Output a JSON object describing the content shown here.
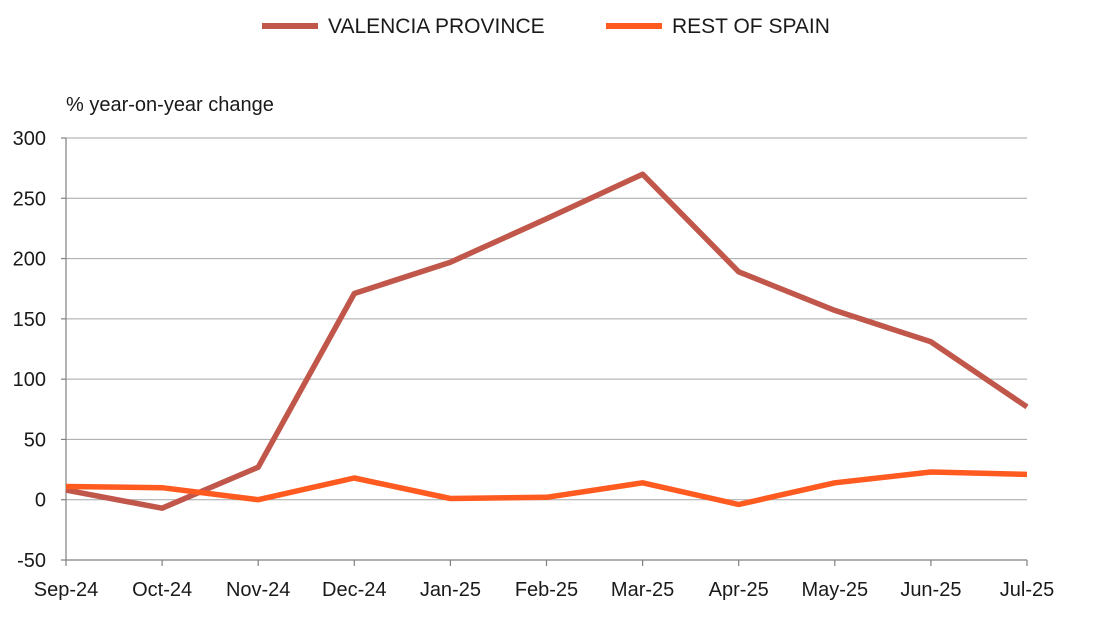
{
  "chart_data": {
    "type": "line",
    "title": "",
    "ylabel": "% year-on-year change",
    "xlabel": "",
    "categories": [
      "Sep-24",
      "Oct-24",
      "Nov-24",
      "Dec-24",
      "Jan-25",
      "Feb-25",
      "Mar-25",
      "Apr-25",
      "May-25",
      "Jun-25",
      "Jul-25"
    ],
    "ylim": [
      -50,
      300
    ],
    "yticks": [
      -50,
      0,
      50,
      100,
      150,
      200,
      250,
      300
    ],
    "grid": true,
    "legend_position": "top-center",
    "series": [
      {
        "name": "VALENCIA PROVINCE",
        "color": "#c0574a",
        "values": [
          8,
          -7,
          27,
          171,
          197,
          233,
          270,
          189,
          157,
          131,
          77
        ]
      },
      {
        "name": "REST OF SPAIN",
        "color": "#ff5a1f",
        "values": [
          11,
          10,
          0,
          18,
          1,
          2,
          14,
          -4,
          14,
          23,
          21
        ]
      }
    ]
  }
}
